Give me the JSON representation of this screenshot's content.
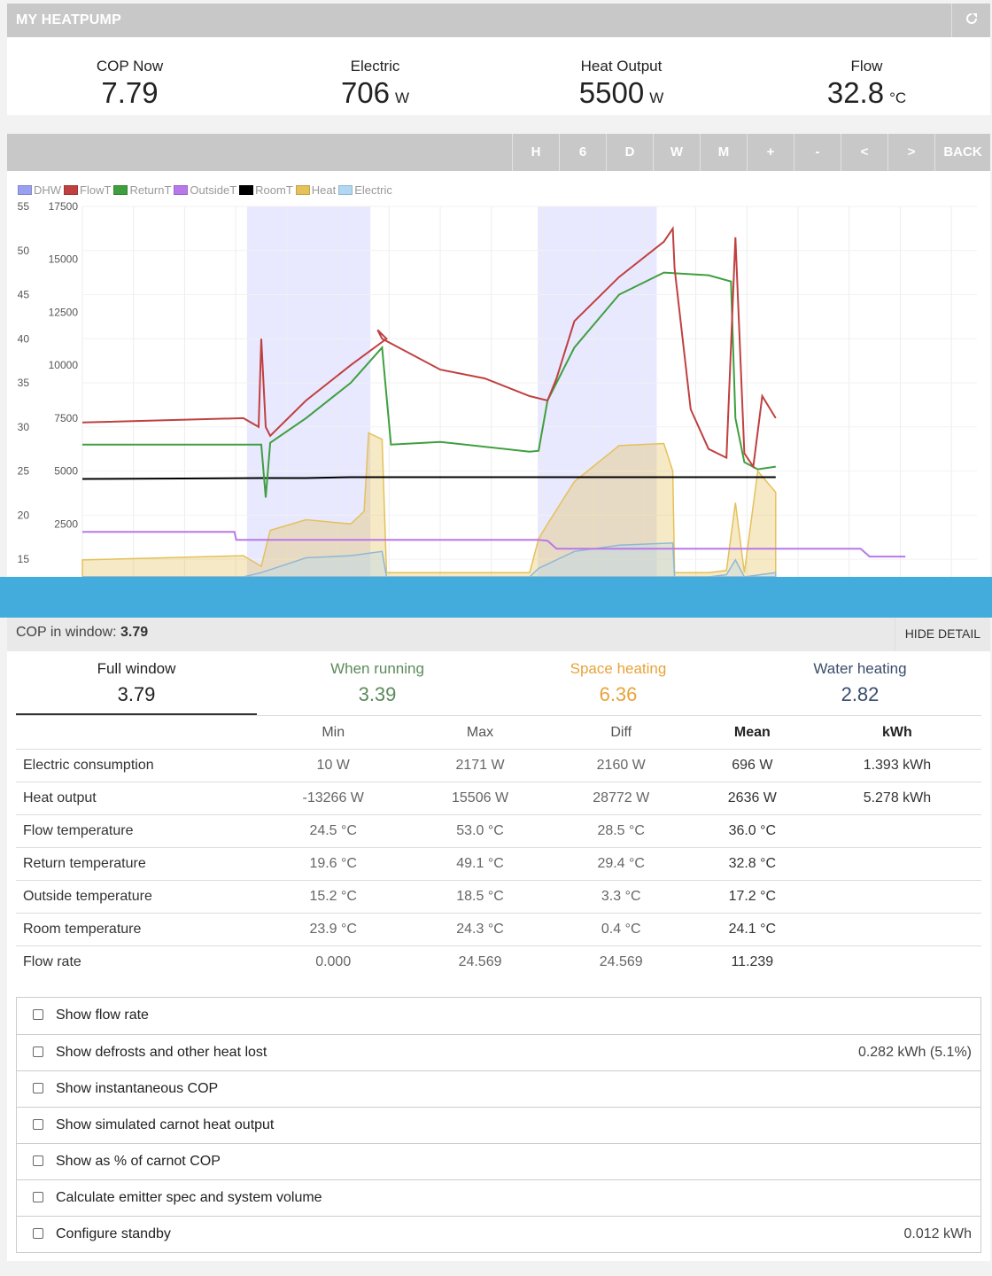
{
  "header": {
    "title": "MY HEATPUMP",
    "external_icon": "external-link-icon"
  },
  "stats": [
    {
      "label": "COP Now",
      "value": "7.79",
      "unit": ""
    },
    {
      "label": "Electric",
      "value": "706",
      "unit": "W"
    },
    {
      "label": "Heat Output",
      "value": "5500",
      "unit": "W"
    },
    {
      "label": "Flow",
      "value": "32.8",
      "unit": "°C"
    }
  ],
  "toolbar": {
    "buttons": [
      "H",
      "6",
      "D",
      "W",
      "M",
      "+",
      "-",
      "<",
      ">",
      "BACK"
    ]
  },
  "chart_data": {
    "type": "line",
    "legend": [
      {
        "name": "DHW",
        "color": "#9aa0f0"
      },
      {
        "name": "FlowT",
        "color": "#c04040"
      },
      {
        "name": "ReturnT",
        "color": "#3f9f3f"
      },
      {
        "name": "OutsideT",
        "color": "#b878ea"
      },
      {
        "name": "RoomT",
        "color": "#000000"
      },
      {
        "name": "Heat",
        "color": "#e5c15a"
      },
      {
        "name": "Electric",
        "color": "#b0d8f2"
      }
    ],
    "y_temp_ticks": [
      "55",
      "50",
      "45",
      "40",
      "35",
      "30",
      "25",
      "20",
      "15"
    ],
    "y_power_ticks": [
      "17500",
      "15000",
      "12500",
      "10000",
      "7500",
      "5000",
      "2500"
    ],
    "temp_axis": [
      13,
      55
    ],
    "power_axis": [
      0,
      17500
    ],
    "dhw_periods": [
      [
        0.184,
        0.322
      ],
      [
        0.509,
        0.642
      ]
    ],
    "series": [
      {
        "name": "FlowT",
        "points": [
          [
            0,
            30.5
          ],
          [
            0.18,
            31
          ],
          [
            0.197,
            30
          ],
          [
            0.2,
            40
          ],
          [
            0.205,
            30
          ],
          [
            0.21,
            29
          ],
          [
            0.25,
            33
          ],
          [
            0.3,
            37
          ],
          [
            0.34,
            40
          ],
          [
            0.33,
            41
          ],
          [
            0.335,
            40
          ],
          [
            0.4,
            36.5
          ],
          [
            0.45,
            35.5
          ],
          [
            0.5,
            33.5
          ],
          [
            0.52,
            33
          ],
          [
            0.53,
            35.5
          ],
          [
            0.55,
            42
          ],
          [
            0.6,
            47
          ],
          [
            0.65,
            51
          ],
          [
            0.66,
            52.5
          ],
          [
            0.662,
            48
          ],
          [
            0.68,
            32
          ],
          [
            0.7,
            27.5
          ],
          [
            0.72,
            26.5
          ],
          [
            0.73,
            51.5
          ],
          [
            0.74,
            27
          ],
          [
            0.75,
            25.5
          ],
          [
            0.76,
            33.5
          ],
          [
            0.775,
            31
          ]
        ]
      },
      {
        "name": "ReturnT",
        "points": [
          [
            0,
            28
          ],
          [
            0.2,
            28
          ],
          [
            0.205,
            22
          ],
          [
            0.21,
            28.2
          ],
          [
            0.25,
            31
          ],
          [
            0.3,
            35
          ],
          [
            0.335,
            39
          ],
          [
            0.345,
            28
          ],
          [
            0.4,
            28.3
          ],
          [
            0.5,
            27.2
          ],
          [
            0.51,
            27.3
          ],
          [
            0.52,
            33
          ],
          [
            0.55,
            39
          ],
          [
            0.6,
            45
          ],
          [
            0.65,
            47.5
          ],
          [
            0.7,
            47.2
          ],
          [
            0.725,
            46.5
          ],
          [
            0.73,
            31
          ],
          [
            0.74,
            26
          ],
          [
            0.755,
            25.2
          ],
          [
            0.775,
            25.5
          ]
        ]
      },
      {
        "name": "RoomT",
        "points": [
          [
            0,
            24.1
          ],
          [
            0.2,
            24.2
          ],
          [
            0.25,
            24.2
          ],
          [
            0.3,
            24.3
          ],
          [
            0.775,
            24.3
          ]
        ]
      },
      {
        "name": "OutsideT",
        "points": [
          [
            0,
            18.1
          ],
          [
            0.17,
            18.1
          ],
          [
            0.172,
            17.2
          ],
          [
            0.5,
            17.2
          ],
          [
            0.51,
            17.2
          ],
          [
            0.52,
            17.1
          ],
          [
            0.53,
            16.2
          ],
          [
            0.85,
            16.2
          ],
          [
            0.87,
            16.2
          ],
          [
            0.88,
            15.3
          ],
          [
            0.92,
            15.3
          ]
        ]
      },
      {
        "name": "Heat",
        "points": [
          [
            0,
            800
          ],
          [
            0.18,
            1000
          ],
          [
            0.2,
            500
          ],
          [
            0.21,
            2200
          ],
          [
            0.25,
            2700
          ],
          [
            0.3,
            2500
          ],
          [
            0.315,
            3100
          ],
          [
            0.32,
            6800
          ],
          [
            0.335,
            6500
          ],
          [
            0.34,
            200
          ],
          [
            0.5,
            200
          ],
          [
            0.51,
            1800
          ],
          [
            0.52,
            2500
          ],
          [
            0.55,
            4500
          ],
          [
            0.6,
            6200
          ],
          [
            0.65,
            6300
          ],
          [
            0.66,
            5000
          ],
          [
            0.662,
            200
          ],
          [
            0.7,
            200
          ],
          [
            0.72,
            300
          ],
          [
            0.73,
            3500
          ],
          [
            0.74,
            200
          ],
          [
            0.755,
            5000
          ],
          [
            0.775,
            4000
          ]
        ]
      },
      {
        "name": "Electric",
        "points": [
          [
            0,
            0
          ],
          [
            0.18,
            0
          ],
          [
            0.2,
            200
          ],
          [
            0.25,
            900
          ],
          [
            0.3,
            1000
          ],
          [
            0.335,
            1200
          ],
          [
            0.34,
            0
          ],
          [
            0.5,
            0
          ],
          [
            0.51,
            400
          ],
          [
            0.55,
            1200
          ],
          [
            0.6,
            1500
          ],
          [
            0.66,
            1600
          ],
          [
            0.662,
            0
          ],
          [
            0.7,
            0
          ],
          [
            0.72,
            100
          ],
          [
            0.73,
            800
          ],
          [
            0.74,
            0
          ],
          [
            0.775,
            200
          ]
        ]
      }
    ]
  },
  "cop_window": {
    "label": "COP in window:",
    "value": "3.79",
    "hide_button": "HIDE DETAIL"
  },
  "tabs": [
    {
      "label": "Full window",
      "value": "3.79",
      "color": "#333333"
    },
    {
      "label": "When running",
      "value": "3.39",
      "color": "#5b8a5b"
    },
    {
      "label": "Space heating",
      "value": "6.36",
      "color": "#e8a33c"
    },
    {
      "label": "Water heating",
      "value": "2.82",
      "color": "#3a4d6b"
    }
  ],
  "table": {
    "headers": [
      "",
      "Min",
      "Max",
      "Diff",
      "Mean",
      "kWh"
    ],
    "rows": [
      [
        "Electric consumption",
        "10 W",
        "2171 W",
        "2160 W",
        "696 W",
        "1.393 kWh"
      ],
      [
        "Heat output",
        "-13266 W",
        "15506 W",
        "28772 W",
        "2636 W",
        "5.278 kWh"
      ],
      [
        "Flow temperature",
        "24.5 °C",
        "53.0 °C",
        "28.5 °C",
        "36.0 °C",
        ""
      ],
      [
        "Return temperature",
        "19.6 °C",
        "49.1 °C",
        "29.4 °C",
        "32.8 °C",
        ""
      ],
      [
        "Outside temperature",
        "15.2 °C",
        "18.5 °C",
        "3.3 °C",
        "17.2 °C",
        ""
      ],
      [
        "Room temperature",
        "23.9 °C",
        "24.3 °C",
        "0.4 °C",
        "24.1 °C",
        ""
      ],
      [
        "Flow rate",
        "0.000",
        "24.569",
        "24.569",
        "11.239",
        ""
      ]
    ]
  },
  "options": [
    {
      "label": "Show flow rate",
      "value": ""
    },
    {
      "label": "Show defrosts and other heat lost",
      "value": "0.282 kWh (5.1%)"
    },
    {
      "label": "Show instantaneous COP",
      "value": ""
    },
    {
      "label": "Show simulated carnot heat output",
      "value": ""
    },
    {
      "label": "Show as % of carnot COP",
      "value": ""
    },
    {
      "label": "Calculate emitter spec and system volume",
      "value": ""
    },
    {
      "label": "Configure standby",
      "value": "0.012 kWh"
    }
  ]
}
